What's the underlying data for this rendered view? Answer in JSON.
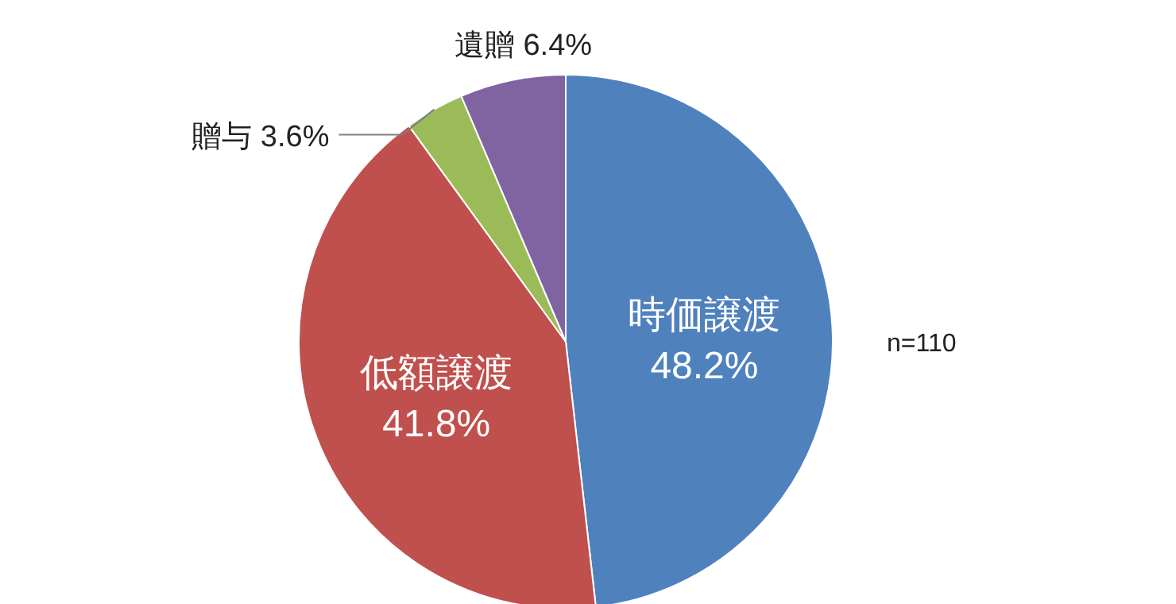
{
  "chart_data": {
    "type": "pie",
    "categories": [
      "時価譲渡",
      "低額譲渡",
      "贈与",
      "遺贈"
    ],
    "values": [
      48.2,
      41.8,
      3.6,
      6.4
    ],
    "value_labels": [
      "48.2%",
      "41.8%",
      "3.6%",
      "6.4%"
    ],
    "colors": [
      "#4f81bd",
      "#c0504d",
      "#9bbb59",
      "#8064a2"
    ],
    "annotations": [
      "n=110"
    ],
    "legend": false
  }
}
